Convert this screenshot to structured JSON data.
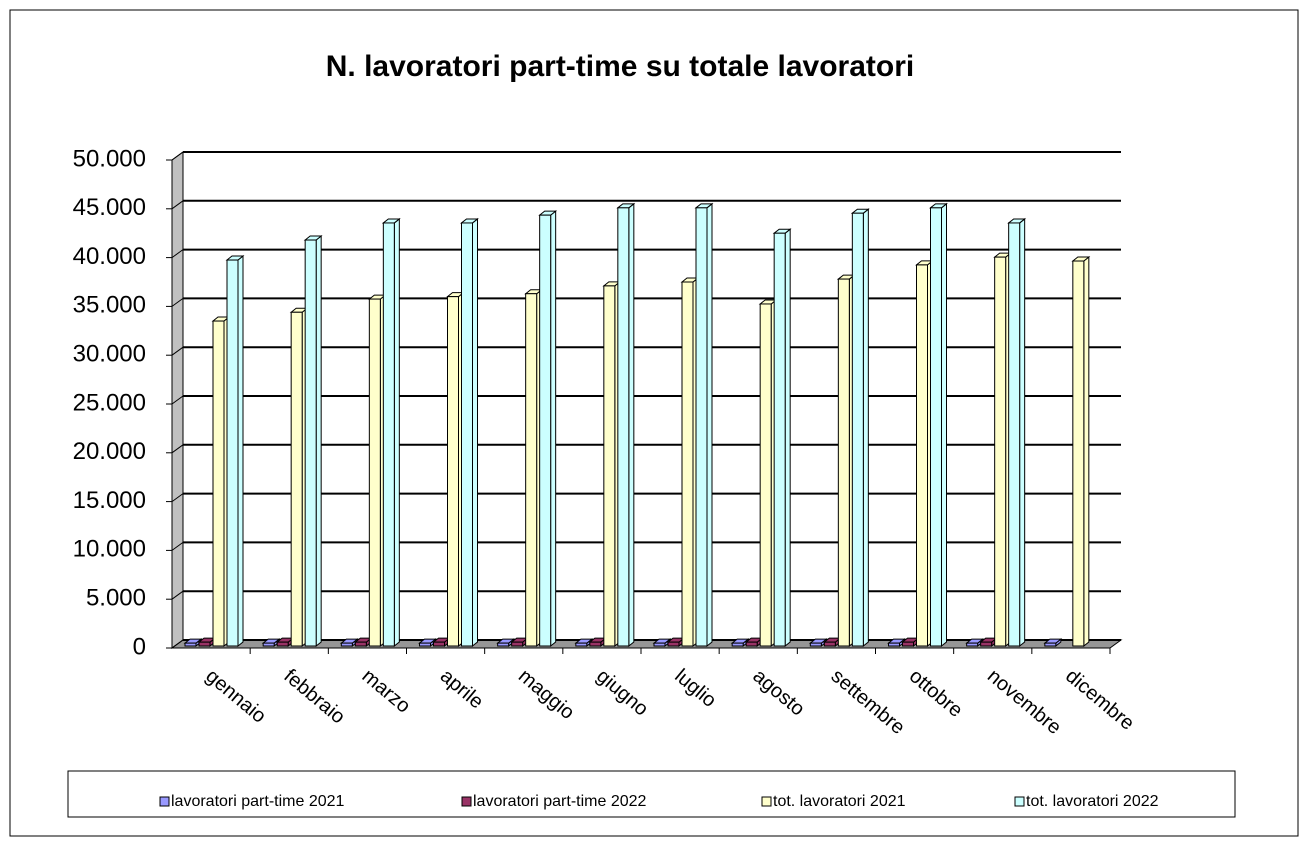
{
  "chart_data": {
    "type": "bar3d",
    "title": "N. lavoratori part-time su totale lavoratori",
    "categories": [
      "gennaio",
      "febbraio",
      "marzo",
      "aprile",
      "maggio",
      "giugno",
      "luglio",
      "agosto",
      "settembre",
      "ottobre",
      "novembre",
      "dicembre"
    ],
    "series": [
      {
        "name": "lavoratori part-time 2021",
        "color": "#9999ff",
        "values": [
          500,
          500,
          500,
          500,
          500,
          500,
          500,
          500,
          500,
          500,
          500,
          500
        ]
      },
      {
        "name": "lavoratori part-time 2022",
        "color": "#993366",
        "values": [
          600,
          600,
          600,
          600,
          600,
          600,
          600,
          600,
          600,
          600,
          600,
          null
        ]
      },
      {
        "name": "tot. lavoratori 2021",
        "color": "#ffffcc",
        "values": [
          33500,
          34400,
          35750,
          36000,
          36300,
          37100,
          37500,
          35250,
          37800,
          39250,
          40050,
          39650
        ]
      },
      {
        "name": "tot. lavoratori 2022",
        "color": "#ccffff",
        "values": [
          39750,
          41800,
          43550,
          43550,
          44350,
          45100,
          45100,
          42500,
          44550,
          45100,
          43550,
          null
        ]
      }
    ],
    "ylim": [
      0,
      50000
    ],
    "yticks": [
      0,
      {
        "value": 5000,
        "label": "5.000"
      },
      {
        "value": 10000,
        "label": "10.000"
      },
      {
        "value": 15000,
        "label": "15.000"
      },
      {
        "value": 20000,
        "label": "20.000"
      },
      {
        "value": 25000,
        "label": "25.000"
      },
      {
        "value": 30000,
        "label": "30.000"
      },
      {
        "value": 35000,
        "label": "35.000"
      },
      {
        "value": 40000,
        "label": "40.000"
      },
      {
        "value": 45000,
        "label": "45.000"
      },
      {
        "value": 50000,
        "label": "50.000"
      }
    ],
    "grid": true,
    "legend": "bottom"
  }
}
